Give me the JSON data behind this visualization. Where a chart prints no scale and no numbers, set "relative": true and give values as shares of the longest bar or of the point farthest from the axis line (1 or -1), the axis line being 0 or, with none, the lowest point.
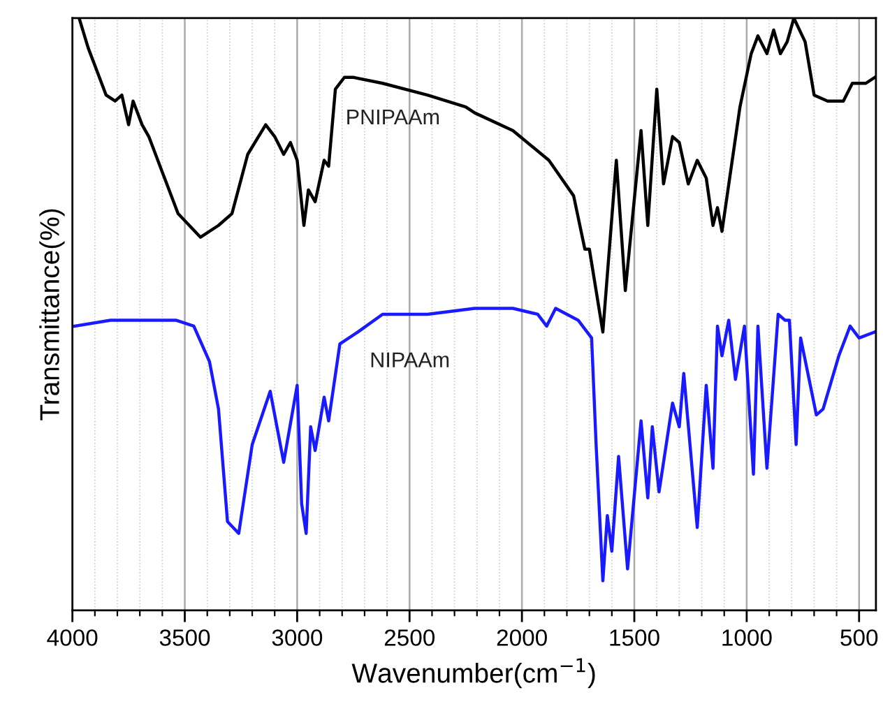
{
  "chart_data": {
    "type": "line",
    "relative": true,
    "xlabel": "Wavenumber(cm$^{−1}$)",
    "ylabel": "Transmittance(%)",
    "grid": "x",
    "legend": false,
    "line_style": "solid",
    "marker": "none",
    "xlim": [
      4000,
      425
    ],
    "xticks": [
      4000,
      {
        "value": 3900,
        "label": null
      },
      {
        "value": 3800,
        "label": null
      },
      {
        "value": 3700,
        "label": null
      },
      {
        "value": 3600,
        "label": null
      },
      3500,
      {
        "value": 3400,
        "label": null
      },
      {
        "value": 3300,
        "label": null
      },
      {
        "value": 3200,
        "label": null
      },
      {
        "value": 3100,
        "label": null
      },
      3000,
      {
        "value": 2900,
        "label": null
      },
      {
        "value": 2800,
        "label": null
      },
      {
        "value": 2700,
        "label": null
      },
      {
        "value": 2600,
        "label": null
      },
      2500,
      {
        "value": 2400,
        "label": null
      },
      {
        "value": 2300,
        "label": null
      },
      {
        "value": 2200,
        "label": null
      },
      {
        "value": 2100,
        "label": null
      },
      2000,
      {
        "value": 1900,
        "label": null
      },
      {
        "value": 1800,
        "label": null
      },
      {
        "value": 1700,
        "label": null
      },
      {
        "value": 1600,
        "label": null
      },
      1500,
      {
        "value": 1400,
        "label": null
      },
      {
        "value": 1300,
        "label": null
      },
      {
        "value": 1200,
        "label": null
      },
      {
        "value": 1100,
        "label": null
      },
      1000,
      {
        "value": 900,
        "label": null
      },
      {
        "value": 800,
        "label": null
      },
      {
        "value": 700,
        "label": null
      },
      {
        "value": 600,
        "label": null
      },
      500
    ],
    "series": [
      {
        "name": "PNIPAAm",
        "color": "#000000",
        "x": [
          3970,
          3930,
          3890,
          3850,
          3810,
          3780,
          3750,
          3730,
          3690,
          3660,
          3600,
          3530,
          3430,
          3350,
          3290,
          3220,
          3140,
          3100,
          3060,
          3030,
          3000,
          2970,
          2950,
          2920,
          2880,
          2860,
          2830,
          2790,
          2750,
          2620,
          2420,
          2250,
          2210,
          2040,
          1880,
          1770,
          1720,
          1700,
          1640,
          1580,
          1540,
          1470,
          1440,
          1400,
          1370,
          1330,
          1300,
          1260,
          1220,
          1180,
          1150,
          1130,
          1110,
          1030,
          980,
          950,
          910,
          880,
          850,
          820,
          790,
          740,
          700,
          640,
          570,
          530,
          470,
          430
        ],
        "values": [
          1.0,
          0.95,
          0.91,
          0.87,
          0.86,
          0.87,
          0.82,
          0.86,
          0.82,
          0.8,
          0.74,
          0.67,
          0.63,
          0.65,
          0.67,
          0.77,
          0.82,
          0.8,
          0.77,
          0.79,
          0.76,
          0.65,
          0.71,
          0.69,
          0.76,
          0.75,
          0.88,
          0.9,
          0.9,
          0.89,
          0.87,
          0.85,
          0.84,
          0.81,
          0.76,
          0.7,
          0.61,
          0.61,
          0.47,
          0.76,
          0.54,
          0.81,
          0.65,
          0.88,
          0.72,
          0.8,
          0.79,
          0.72,
          0.76,
          0.73,
          0.65,
          0.68,
          0.64,
          0.85,
          0.94,
          0.97,
          0.94,
          0.98,
          0.94,
          0.96,
          1.0,
          0.96,
          0.87,
          0.86,
          0.86,
          0.89,
          0.89,
          0.9
        ]
      },
      {
        "name": "NIPAAm",
        "color": "#1a1aff",
        "x": [
          3990,
          3830,
          3640,
          3540,
          3460,
          3390,
          3350,
          3310,
          3260,
          3200,
          3120,
          3060,
          3000,
          2980,
          2960,
          2940,
          2920,
          2880,
          2860,
          2810,
          2730,
          2620,
          2420,
          2210,
          2040,
          1930,
          1890,
          1850,
          1750,
          1690,
          1670,
          1640,
          1620,
          1600,
          1570,
          1530,
          1470,
          1440,
          1420,
          1390,
          1330,
          1300,
          1280,
          1220,
          1180,
          1150,
          1130,
          1110,
          1080,
          1050,
          1010,
          970,
          950,
          910,
          860,
          830,
          810,
          780,
          760,
          690,
          660,
          590,
          540,
          500,
          430
        ],
        "values": [
          0.48,
          0.49,
          0.49,
          0.49,
          0.48,
          0.42,
          0.34,
          0.15,
          0.13,
          0.28,
          0.37,
          0.25,
          0.38,
          0.18,
          0.13,
          0.31,
          0.27,
          0.36,
          0.32,
          0.45,
          0.47,
          0.5,
          0.5,
          0.51,
          0.51,
          0.5,
          0.48,
          0.51,
          0.49,
          0.46,
          0.28,
          0.05,
          0.16,
          0.1,
          0.26,
          0.07,
          0.32,
          0.19,
          0.31,
          0.2,
          0.35,
          0.31,
          0.4,
          0.14,
          0.38,
          0.24,
          0.48,
          0.43,
          0.49,
          0.39,
          0.48,
          0.23,
          0.48,
          0.24,
          0.5,
          0.49,
          0.49,
          0.28,
          0.46,
          0.33,
          0.34,
          0.43,
          0.48,
          0.46,
          0.47
        ]
      }
    ]
  }
}
